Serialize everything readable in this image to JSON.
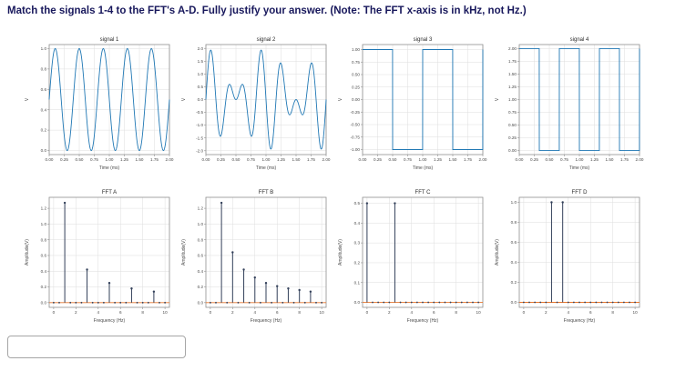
{
  "page": {
    "question": "Match the signals 1-4 to the FFT's A-D. Fully justify your answer. (Note: The FFT x-axis is in kHz, not Hz.)"
  },
  "answer_box": {
    "value": ""
  },
  "colors": {
    "line": "#1f77b4",
    "stem": "#33405a",
    "baseline": "#e8762d",
    "grid": "#dedede",
    "spine": "#8f8f8f",
    "text": "#4a4a4a",
    "title": "#2b2b2b"
  },
  "chart_data": [
    {
      "id": "signal-1",
      "row": 0,
      "col": 0,
      "type": "line",
      "title": "signal 1",
      "xlabel": "Time (ms)",
      "ylabel": "V",
      "xlim": [
        0,
        2
      ],
      "ylim": [
        -0.04,
        1.04
      ],
      "xticks": [
        0,
        0.25,
        0.5,
        0.75,
        1,
        1.25,
        1.5,
        1.75,
        2
      ],
      "xtick_labels": [
        "0.00",
        "0.25",
        "0.50",
        "0.75",
        "1.00",
        "1.25",
        "1.50",
        "1.75",
        "2.00"
      ],
      "yticks": [
        0,
        0.2,
        0.4,
        0.6,
        0.8,
        1
      ],
      "ytick_labels": [
        "0.0",
        "0.2",
        "0.4",
        "0.6",
        "0.8",
        "1.0"
      ],
      "waveform": {
        "kind": "tones",
        "offset": 0.5,
        "tones": [
          {
            "f_khz": 2.5,
            "amp": 0.5
          }
        ]
      }
    },
    {
      "id": "signal-2",
      "row": 0,
      "col": 1,
      "type": "line",
      "title": "signal 2",
      "xlabel": "Time (ms)",
      "ylabel": "V",
      "xlim": [
        0,
        2
      ],
      "ylim": [
        -2.15,
        2.15
      ],
      "xticks": [
        0,
        0.25,
        0.5,
        0.75,
        1,
        1.25,
        1.5,
        1.75,
        2
      ],
      "xtick_labels": [
        "0.00",
        "0.25",
        "0.50",
        "0.75",
        "1.00",
        "1.25",
        "1.50",
        "1.75",
        "2.00"
      ],
      "yticks": [
        -2,
        -1.5,
        -1,
        -0.5,
        0,
        0.5,
        1,
        1.5,
        2
      ],
      "ytick_labels": [
        "-2.0",
        "-1.5",
        "-1.0",
        "-0.5",
        "0.0",
        "0.5",
        "1.0",
        "1.5",
        "2.0"
      ],
      "waveform": {
        "kind": "tones",
        "offset": 0,
        "tones": [
          {
            "f_khz": 2.5,
            "amp": 1
          },
          {
            "f_khz": 3.5,
            "amp": 1
          }
        ]
      }
    },
    {
      "id": "signal-3",
      "row": 0,
      "col": 2,
      "type": "line",
      "title": "signal 3",
      "xlabel": "Time (ms)",
      "ylabel": "V",
      "xlim": [
        0,
        2
      ],
      "ylim": [
        -1.1,
        1.1
      ],
      "xticks": [
        0,
        0.25,
        0.5,
        0.75,
        1,
        1.25,
        1.5,
        1.75,
        2
      ],
      "xtick_labels": [
        "0.00",
        "0.25",
        "0.50",
        "0.75",
        "1.00",
        "1.25",
        "1.50",
        "1.75",
        "2.00"
      ],
      "yticks": [
        -1,
        -0.75,
        -0.5,
        -0.25,
        0,
        0.25,
        0.5,
        0.75,
        1
      ],
      "ytick_labels": [
        "-1.00",
        "-0.75",
        "-0.50",
        "-0.25",
        "0.00",
        "0.25",
        "0.50",
        "0.75",
        "1.00"
      ],
      "waveform": {
        "kind": "square",
        "f_khz": 1,
        "high": 1,
        "low": -1,
        "duty": 0.5
      }
    },
    {
      "id": "signal-4",
      "row": 0,
      "col": 3,
      "type": "line",
      "title": "signal 4",
      "xlabel": "Time (ms)",
      "ylabel": "V",
      "xlim": [
        0,
        2
      ],
      "ylim": [
        -0.08,
        2.08
      ],
      "xticks": [
        0,
        0.25,
        0.5,
        0.75,
        1,
        1.25,
        1.5,
        1.75,
        2
      ],
      "xtick_labels": [
        "0.00",
        "0.25",
        "0.50",
        "0.75",
        "1.00",
        "1.25",
        "1.50",
        "1.75",
        "2.00"
      ],
      "yticks": [
        0,
        0.25,
        0.5,
        0.75,
        1,
        1.25,
        1.5,
        1.75,
        2
      ],
      "ytick_labels": [
        "0.00",
        "0.25",
        "0.50",
        "0.75",
        "1.00",
        "1.25",
        "1.50",
        "1.75",
        "2.00"
      ],
      "waveform": {
        "kind": "square",
        "f_khz": 1.5,
        "high": 2,
        "low": 0,
        "duty": 0.5
      }
    },
    {
      "id": "fft-a",
      "row": 1,
      "col": 0,
      "type": "stem",
      "title": "FFT A",
      "xlabel": "Frequency (Hz)",
      "ylabel": "Amplitude(V)",
      "xlim": [
        -0.4,
        10.4
      ],
      "ylim": [
        -0.06,
        1.34
      ],
      "xticks": [
        0,
        2,
        4,
        6,
        8,
        10
      ],
      "xtick_labels": [
        "0",
        "2",
        "4",
        "6",
        "8",
        "10"
      ],
      "yticks": [
        0,
        0.2,
        0.4,
        0.6,
        0.8,
        1,
        1.2
      ],
      "ytick_labels": [
        "0.0",
        "0.2",
        "0.4",
        "0.6",
        "0.8",
        "1.0",
        "1.2"
      ],
      "stems": {
        "x": [
          1,
          3,
          5,
          7,
          9
        ],
        "y": [
          1.27,
          0.42,
          0.25,
          0.18,
          0.14
        ],
        "zero_step": 0.5
      }
    },
    {
      "id": "fft-b",
      "row": 1,
      "col": 1,
      "type": "stem",
      "title": "FFT B",
      "xlabel": "Frequency (Hz)",
      "ylabel": "Amplitude(V)",
      "xlim": [
        -0.4,
        10.4
      ],
      "ylim": [
        -0.06,
        1.34
      ],
      "xticks": [
        0,
        2,
        4,
        6,
        8,
        10
      ],
      "xtick_labels": [
        "0",
        "2",
        "4",
        "6",
        "8",
        "10"
      ],
      "yticks": [
        0,
        0.2,
        0.4,
        0.6,
        0.8,
        1,
        1.2
      ],
      "ytick_labels": [
        "0.0",
        "0.2",
        "0.4",
        "0.6",
        "0.8",
        "1.0",
        "1.2"
      ],
      "stems": {
        "x": [
          1,
          2,
          3,
          4,
          5,
          6,
          7,
          8,
          9
        ],
        "y": [
          1.27,
          0.64,
          0.42,
          0.32,
          0.25,
          0.21,
          0.18,
          0.16,
          0.14
        ],
        "zero_step": 0.5
      }
    },
    {
      "id": "fft-c",
      "row": 1,
      "col": 2,
      "type": "stem",
      "title": "FFT C",
      "xlabel": "Frequency (Hz)",
      "ylabel": "Amplitude(V)",
      "xlim": [
        -0.4,
        10.4
      ],
      "ylim": [
        -0.025,
        0.53
      ],
      "xticks": [
        0,
        2,
        4,
        6,
        8,
        10
      ],
      "xtick_labels": [
        "0",
        "2",
        "4",
        "6",
        "8",
        "10"
      ],
      "yticks": [
        0,
        0.1,
        0.2,
        0.3,
        0.4,
        0.5
      ],
      "ytick_labels": [
        "0.0",
        "0.1",
        "0.2",
        "0.3",
        "0.4",
        "0.5"
      ],
      "stems": {
        "x": [
          0,
          2.5
        ],
        "y": [
          0.5,
          0.5
        ],
        "zero_step": 0.5
      }
    },
    {
      "id": "fft-d",
      "row": 1,
      "col": 3,
      "type": "stem",
      "title": "FFT D",
      "xlabel": "Frequency (Hz)",
      "ylabel": "Amplitude(V)",
      "xlim": [
        -0.4,
        10.4
      ],
      "ylim": [
        -0.05,
        1.05
      ],
      "xticks": [
        0,
        2,
        4,
        6,
        8,
        10
      ],
      "xtick_labels": [
        "0",
        "2",
        "4",
        "6",
        "8",
        "10"
      ],
      "yticks": [
        0,
        0.2,
        0.4,
        0.6,
        0.8,
        1
      ],
      "ytick_labels": [
        "0.0",
        "0.2",
        "0.4",
        "0.6",
        "0.8",
        "1.0"
      ],
      "stems": {
        "x": [
          2.5,
          3.5
        ],
        "y": [
          1.0,
          1.0
        ],
        "zero_step": 0.5
      }
    }
  ]
}
